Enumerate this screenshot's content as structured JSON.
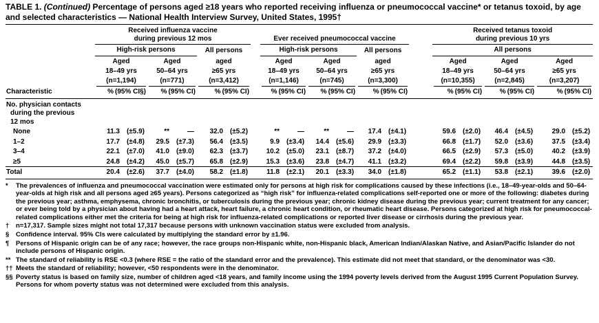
{
  "page": {
    "title_label": "TABLE 1.",
    "title_continued": "(Continued)",
    "title_text": "Percentage of persons aged ≥18 years who reported receiving influenza or pneumococcal vaccine* or tetanus toxoid, by age and selected characteristics — National Health Interview Survey, United States, 1995†"
  },
  "table": {
    "stub_header": "Characteristic",
    "groups": [
      {
        "title_lines": [
          "Received influenza vaccine",
          "during previous 12 mos"
        ],
        "subgroups": [
          {
            "label": "High-risk persons",
            "span": 2,
            "underline": true
          },
          {
            "label": "All persons",
            "span": 1,
            "underline": false
          }
        ]
      },
      {
        "title_lines": [
          "Ever received pneumococcal vaccine"
        ],
        "subgroups": [
          {
            "label": "High-risk persons",
            "span": 2,
            "underline": true
          },
          {
            "label": "All persons",
            "span": 1,
            "underline": false
          }
        ]
      },
      {
        "title_lines": [
          "Received tetanus toxoid",
          "during previous 10 yrs"
        ],
        "subgroups": [
          {
            "label": "All persons",
            "span": 3,
            "underline": true
          }
        ]
      }
    ],
    "columns": [
      {
        "age_word": "Aged",
        "age_range": "18–49 yrs",
        "n": "(n=1,194)",
        "pct": "%",
        "ci": "(95% CI§)"
      },
      {
        "age_word": "Aged",
        "age_range": "50–64 yrs",
        "n": "(n=771)",
        "pct": "%",
        "ci": "(95% CI)"
      },
      {
        "age_word": "aged",
        "age_range": "≥65 yrs",
        "n": "(n=3,412)",
        "pct": "%",
        "ci": "(95% CI)"
      },
      {
        "age_word": "Aged",
        "age_range": "18–49 yrs",
        "n": "(n=1,146)",
        "pct": "%",
        "ci": "(95% CI)"
      },
      {
        "age_word": "Aged",
        "age_range": "50–64 yrs",
        "n": "(n=745)",
        "pct": "%",
        "ci": "(95% CI)"
      },
      {
        "age_word": "aged",
        "age_range": "≥65 yrs",
        "n": "(n=3,300)",
        "pct": "%",
        "ci": "(95% CI)"
      },
      {
        "age_word": "Aged",
        "age_range": "18–49 yrs",
        "n": "(n=10,355)",
        "pct": "%",
        "ci": "(95% CI)"
      },
      {
        "age_word": "Aged",
        "age_range": "50–64 yrs",
        "n": "(n=2,845)",
        "pct": "%",
        "ci": "(95% CI)"
      },
      {
        "age_word": "Aged",
        "age_range": "≥65 yrs",
        "n": "(n=3,207)",
        "pct": "%",
        "ci": "(95% CI)"
      }
    ],
    "section_lines": [
      "No. physician contacts",
      "during the previous",
      "12 mos"
    ],
    "rows": [
      {
        "label": "None",
        "cells": [
          [
            "11.3",
            "(±5.9)"
          ],
          [
            "**",
            "—"
          ],
          [
            "32.0",
            "(±5.2)"
          ],
          [
            "**",
            "—"
          ],
          [
            "**",
            "—"
          ],
          [
            "17.4",
            "(±4.1)"
          ],
          [
            "59.6",
            "(±2.0)"
          ],
          [
            "46.4",
            "(±4.5)"
          ],
          [
            "29.0",
            "(±5.2)"
          ]
        ]
      },
      {
        "label": "1–2",
        "cells": [
          [
            "17.7",
            "(±4.8)"
          ],
          [
            "29.5",
            "(±7.3)"
          ],
          [
            "56.4",
            "(±3.5)"
          ],
          [
            "9.9",
            "(±3.4)"
          ],
          [
            "14.4",
            "(±5.6)"
          ],
          [
            "29.9",
            "(±3.3)"
          ],
          [
            "66.8",
            "(±1.7)"
          ],
          [
            "52.0",
            "(±3.6)"
          ],
          [
            "37.5",
            "(±3.4)"
          ]
        ]
      },
      {
        "label": "3–4",
        "cells": [
          [
            "22.1",
            "(±7.0)"
          ],
          [
            "41.0",
            "(±9.0)"
          ],
          [
            "62.3",
            "(±3.7)"
          ],
          [
            "10.2",
            "(±5.0)"
          ],
          [
            "23.1",
            "(±8.7)"
          ],
          [
            "37.2",
            "(±4.0)"
          ],
          [
            "66.5",
            "(±2.9)"
          ],
          [
            "57.3",
            "(±5.0)"
          ],
          [
            "40.2",
            "(±3.9)"
          ]
        ]
      },
      {
        "label": "≥5",
        "cells": [
          [
            "24.8",
            "(±4.2)"
          ],
          [
            "45.0",
            "(±5.7)"
          ],
          [
            "65.8",
            "(±2.9)"
          ],
          [
            "15.3",
            "(±3.6)"
          ],
          [
            "23.8",
            "(±4.7)"
          ],
          [
            "41.1",
            "(±3.2)"
          ],
          [
            "69.4",
            "(±2.2)"
          ],
          [
            "59.8",
            "(±3.9)"
          ],
          [
            "44.8",
            "(±3.5)"
          ]
        ]
      }
    ],
    "total_row": {
      "label": "Total",
      "cells": [
        [
          "20.4",
          "(±2.6)"
        ],
        [
          "37.7",
          "(±4.0)"
        ],
        [
          "58.2",
          "(±1.8)"
        ],
        [
          "11.8",
          "(±2.1)"
        ],
        [
          "20.1",
          "(±3.3)"
        ],
        [
          "34.0",
          "(±1.8)"
        ],
        [
          "65.2",
          "(±1.1)"
        ],
        [
          "53.8",
          "(±2.1)"
        ],
        [
          "39.6",
          "(±2.0)"
        ]
      ]
    }
  },
  "footnotes": [
    {
      "marker": "*",
      "text": "The prevalences of influenza and pneumococcal vaccination were estimated only for persons at high risk for complications caused by these infections (i.e., 18–49-year-olds and 50–64-year-olds at high risk and all persons aged ≥65 years). Persons categorized as “high risk” for influenza-related complications self-reported one or more of the following: diabetes during the previous year; asthma, emphysema, chronic bronchitis, or tuberculosis during the previous year; chronic kidney disease during the previous year; current treatment for any cancer; or ever being told by a physician about having had a heart attack, heart failure, a chronic heart condition, or rheumatic heart disease. Persons categorized at high risk for pneumococcal-related complications either met the criteria for being at high risk for influenza-related complications or reported liver disease or cirrhosis during the previous year."
    },
    {
      "marker": "†",
      "text": "n=17,317. Sample sizes might not total 17,317 because persons with unknown vaccination status were excluded from analysis."
    },
    {
      "marker": "§",
      "text": "Confidence interval. 95% CIs were calculated by multiplying the standard error by ±1.96."
    },
    {
      "marker": "¶",
      "text": "Persons of Hispanic origin can be of any race; however, the race groups non-Hispanic white, non-Hispanic black, American Indian/Alaskan Native, and Asian/Pacific Islander do not include persons of Hispanic origin."
    },
    {
      "marker": "**",
      "text": "The standard of reliability is RSE <0.3 (where RSE = the ratio of the standard error and the prevalence). This estimate did not meet that standard, or the denominator was <30."
    },
    {
      "marker": "††",
      "text": "Meets the standard of reliability; however, <50 respondents were in the denominator."
    },
    {
      "marker": "§§",
      "text": "Poverty status is based on family size, number of children aged <18 years, and family income using the 1994 poverty levels derived from the August 1995 Current Population Survey. Persons for whom poverty status was not determined were excluded from this analysis."
    }
  ]
}
